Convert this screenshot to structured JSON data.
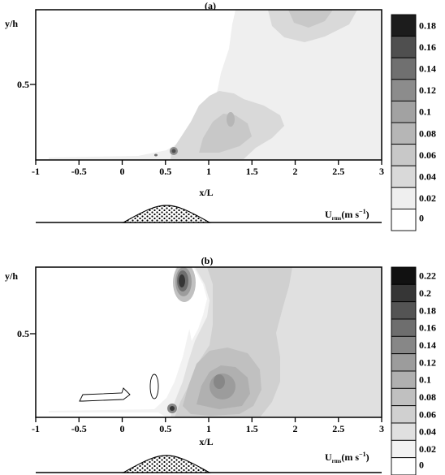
{
  "chart_data": [
    {
      "type": "heatmap",
      "panel_label": "(a)",
      "xlabel": "x/L",
      "ylabel": "y/h",
      "xlim": [
        -1,
        3
      ],
      "x_ticks": [
        "-1",
        "-0.5",
        "0",
        "0.5",
        "1",
        "1.5",
        "2",
        "2.5",
        "3"
      ],
      "y_ticks": [
        "0.5"
      ],
      "colorbar": {
        "label_main": "U",
        "label_sub": "rms",
        "label_units": "(m s",
        "label_exp": "−1",
        "label_close": ")",
        "levels": [
          "0",
          "0.02",
          "0.04",
          "0.06",
          "0.08",
          "0.1",
          "0.12",
          "0.14",
          "0.16",
          "0.18"
        ],
        "colors": [
          "#ffffff",
          "#efefef",
          "#d9d9d9",
          "#c8c8c8",
          "#b6b6b6",
          "#a2a2a2",
          "#8c8c8c",
          "#707070",
          "#4f4f4f",
          "#1c1c1c"
        ]
      }
    },
    {
      "type": "heatmap",
      "panel_label": "(b)",
      "xlabel": "x/L",
      "ylabel": "y/h",
      "xlim": [
        -1,
        3
      ],
      "x_ticks": [
        "-1",
        "-0.5",
        "0",
        "0.5",
        "1",
        "1.5",
        "2",
        "2.5",
        "3"
      ],
      "y_ticks": [
        "0.5"
      ],
      "colorbar": {
        "label_main": "U",
        "label_sub": "rms",
        "label_units": "(m s",
        "label_exp": "−1",
        "label_close": ")",
        "levels": [
          "0",
          "0.02",
          "0.04",
          "0.06",
          "0.08",
          "0.1",
          "0.12",
          "0.14",
          "0.16",
          "0.18",
          "0.2",
          "0.22"
        ],
        "colors": [
          "#ffffff",
          "#f2f2f2",
          "#e0e0e0",
          "#d0d0d0",
          "#c0c0c0",
          "#b0b0b0",
          "#9c9c9c",
          "#878787",
          "#6e6e6e",
          "#545454",
          "#363636",
          "#111111"
        ]
      }
    }
  ]
}
